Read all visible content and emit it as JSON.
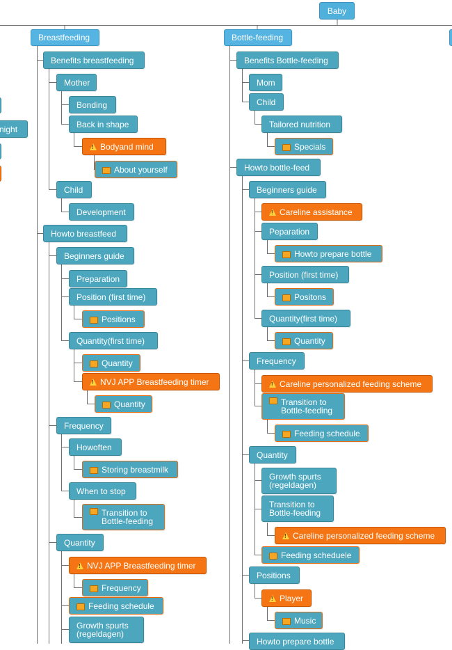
{
  "root": "Baby",
  "partial_left": {
    "night": "night"
  },
  "breastfeeding": {
    "title": "Breastfeeding",
    "benefits": "Benefits breastfeeding",
    "mother": "Mother",
    "bonding": "Bonding",
    "back_in_shape": "Back in shape",
    "body_and_mind": "Bodyand mind",
    "about_yourself": "About yourself",
    "child": "Child",
    "development": "Development",
    "how_to": "Howto breastfeed",
    "beginners_guide": "Beginners guide",
    "preparation": "Preparation",
    "position_first": "Position (first time)",
    "positions": "Positions",
    "quantity_first": "Quantity(first time)",
    "quantity_a": "Quantity",
    "nvj_timer_a": "NVJ APP Breastfeeding timer",
    "quantity_b": "Quantity",
    "frequency": "Frequency",
    "how_often": "Howoften",
    "storing": "Storing breastmilk",
    "when_to_stop": "When to stop",
    "transition": "Transition to\nBottle-feeding",
    "quantity": "Quantity",
    "nvj_timer_b": "NVJ APP Breastfeeding timer",
    "frequency_b": "Frequency",
    "feeding_schedule": "Feeding schedule",
    "growth_spurts": "Growth spurts\n(regeldagen)"
  },
  "bottle": {
    "title": "Bottle-feeding",
    "benefits": "Benefits Bottle-feeding",
    "mom": "Mom",
    "child": "Child",
    "tailored": "Tailored nutrition",
    "specials": "Specials",
    "how_to": "Howto bottle-feed",
    "beginners_guide": "Beginners guide",
    "careline_assist": "Careline assistance",
    "peparation": "Peparation",
    "how_prepare": "Howto prepare bottle",
    "position_first": "Position (first time)",
    "positons": "Positons",
    "quantity_first": "Quantity(first time)",
    "quantity_a": "Quantity",
    "frequency": "Frequency",
    "careline_scheme_a": "Careline personalized feeding scheme",
    "transition": "Transition to\nBottle-feeding",
    "feeding_schedule": "Feeding schedule",
    "quantity": "Quantity",
    "growth_spurts": "Growth spurts\n(regeldagen)",
    "transition_b": "Transition to\nBottle-feeding",
    "careline_scheme_b": "Careline personalized feeding scheme",
    "feeding_scheduele": "Feeding scheduele",
    "positions": "Positions",
    "player": "Player",
    "music": "Music",
    "how_prepare_bottle": "Howto prepare bottle"
  },
  "colors": {
    "node": "#4ca7be",
    "top": "#56b4e2",
    "root": "#4fb0dc",
    "orange": "#f57514",
    "line": "#6f6f6f"
  },
  "icons": {
    "flag": "flag-icon",
    "warning": "warning-icon"
  }
}
